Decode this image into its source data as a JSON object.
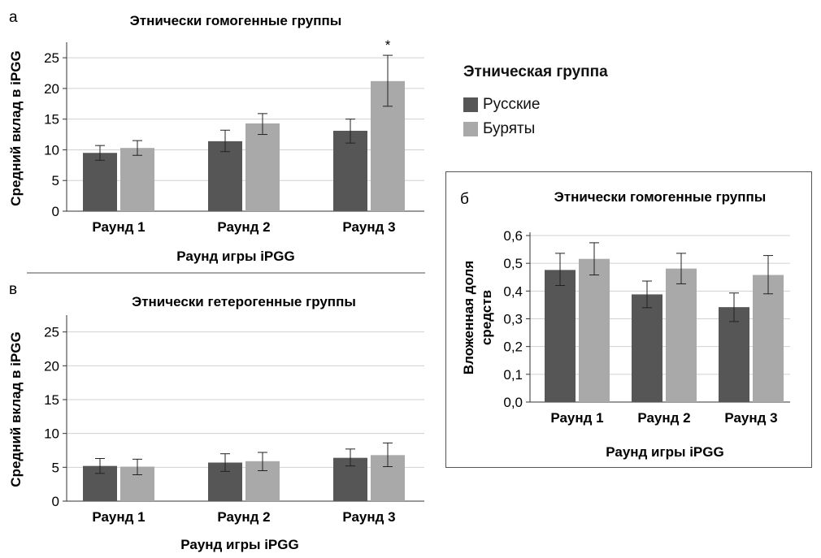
{
  "colors": {
    "russians": "#565656",
    "buryats": "#a9a9a9",
    "grid": "#d0d0d0",
    "error": "#222222"
  },
  "legend": {
    "title": "Этническая группа",
    "items": [
      {
        "label": "Русские",
        "color": "#565656"
      },
      {
        "label": "Буряты",
        "color": "#a9a9a9"
      }
    ]
  },
  "panels": {
    "a": {
      "letter": "а"
    },
    "v": {
      "letter": "в"
    },
    "b": {
      "letter": "б"
    }
  },
  "chart_data": [
    {
      "id": "a",
      "type": "bar",
      "title": "Этнически гомогенные группы",
      "xlabel": "Раунд игры iPGG",
      "ylabel": "Средний вклад в iPGG",
      "categories": [
        "Раунд 1",
        "Раунд 2",
        "Раунд 3"
      ],
      "ylim": [
        0,
        27
      ],
      "yticks": [
        "0",
        "5",
        "10",
        "15",
        "20",
        "25"
      ],
      "ytick_values": [
        0,
        5,
        10,
        15,
        20,
        25
      ],
      "grid": true,
      "series": [
        {
          "name": "Русские",
          "values": [
            9.5,
            11.4,
            13.1
          ],
          "err_low": [
            8.3,
            9.7,
            11.1
          ],
          "err_high": [
            10.7,
            13.2,
            15.0
          ]
        },
        {
          "name": "Буряты",
          "values": [
            10.3,
            14.3,
            21.2
          ],
          "err_low": [
            9.1,
            12.5,
            17.1
          ],
          "err_high": [
            11.5,
            15.9,
            25.4
          ]
        }
      ],
      "annotations": [
        {
          "text": "*",
          "category": 2,
          "series": 1
        }
      ]
    },
    {
      "id": "v",
      "type": "bar",
      "title": "Этнически гетерогенные группы",
      "xlabel": "Раунд игры iPGG",
      "ylabel": "Средний вклад в iPGG",
      "categories": [
        "Раунд 1",
        "Раунд 2",
        "Раунд 3"
      ],
      "ylim": [
        0,
        27
      ],
      "yticks": [
        "0",
        "5",
        "10",
        "15",
        "20",
        "25"
      ],
      "ytick_values": [
        0,
        5,
        10,
        15,
        20,
        25
      ],
      "grid": true,
      "series": [
        {
          "name": "Русские",
          "values": [
            5.2,
            5.7,
            6.4
          ],
          "err_low": [
            4.1,
            4.4,
            5.2
          ],
          "err_high": [
            6.3,
            7.0,
            7.7
          ]
        },
        {
          "name": "Буряты",
          "values": [
            5.1,
            5.9,
            6.8
          ],
          "err_low": [
            3.9,
            4.5,
            5.1
          ],
          "err_high": [
            6.2,
            7.2,
            8.6
          ]
        }
      ],
      "annotations": []
    },
    {
      "id": "b",
      "type": "bar",
      "title": "Этнически гомогенные группы",
      "xlabel": "Раунд игры iPGG",
      "ylabel": "Вложенная доля средств",
      "categories": [
        "Раунд 1",
        "Раунд 2",
        "Раунд 3"
      ],
      "ylim": [
        0,
        0.6
      ],
      "yticks": [
        "0,0",
        "0,1",
        "0,2",
        "0,3",
        "0,4",
        "0,5",
        "0,6"
      ],
      "ytick_values": [
        0,
        0.1,
        0.2,
        0.3,
        0.4,
        0.5,
        0.6
      ],
      "grid": true,
      "series": [
        {
          "name": "Русские",
          "values": [
            0.476,
            0.388,
            0.342
          ],
          "err_low": [
            0.42,
            0.34,
            0.29
          ],
          "err_high": [
            0.536,
            0.436,
            0.393
          ]
        },
        {
          "name": "Буряты",
          "values": [
            0.516,
            0.481,
            0.458
          ],
          "err_low": [
            0.458,
            0.426,
            0.39
          ],
          "err_high": [
            0.574,
            0.536,
            0.528
          ]
        }
      ],
      "annotations": []
    }
  ]
}
